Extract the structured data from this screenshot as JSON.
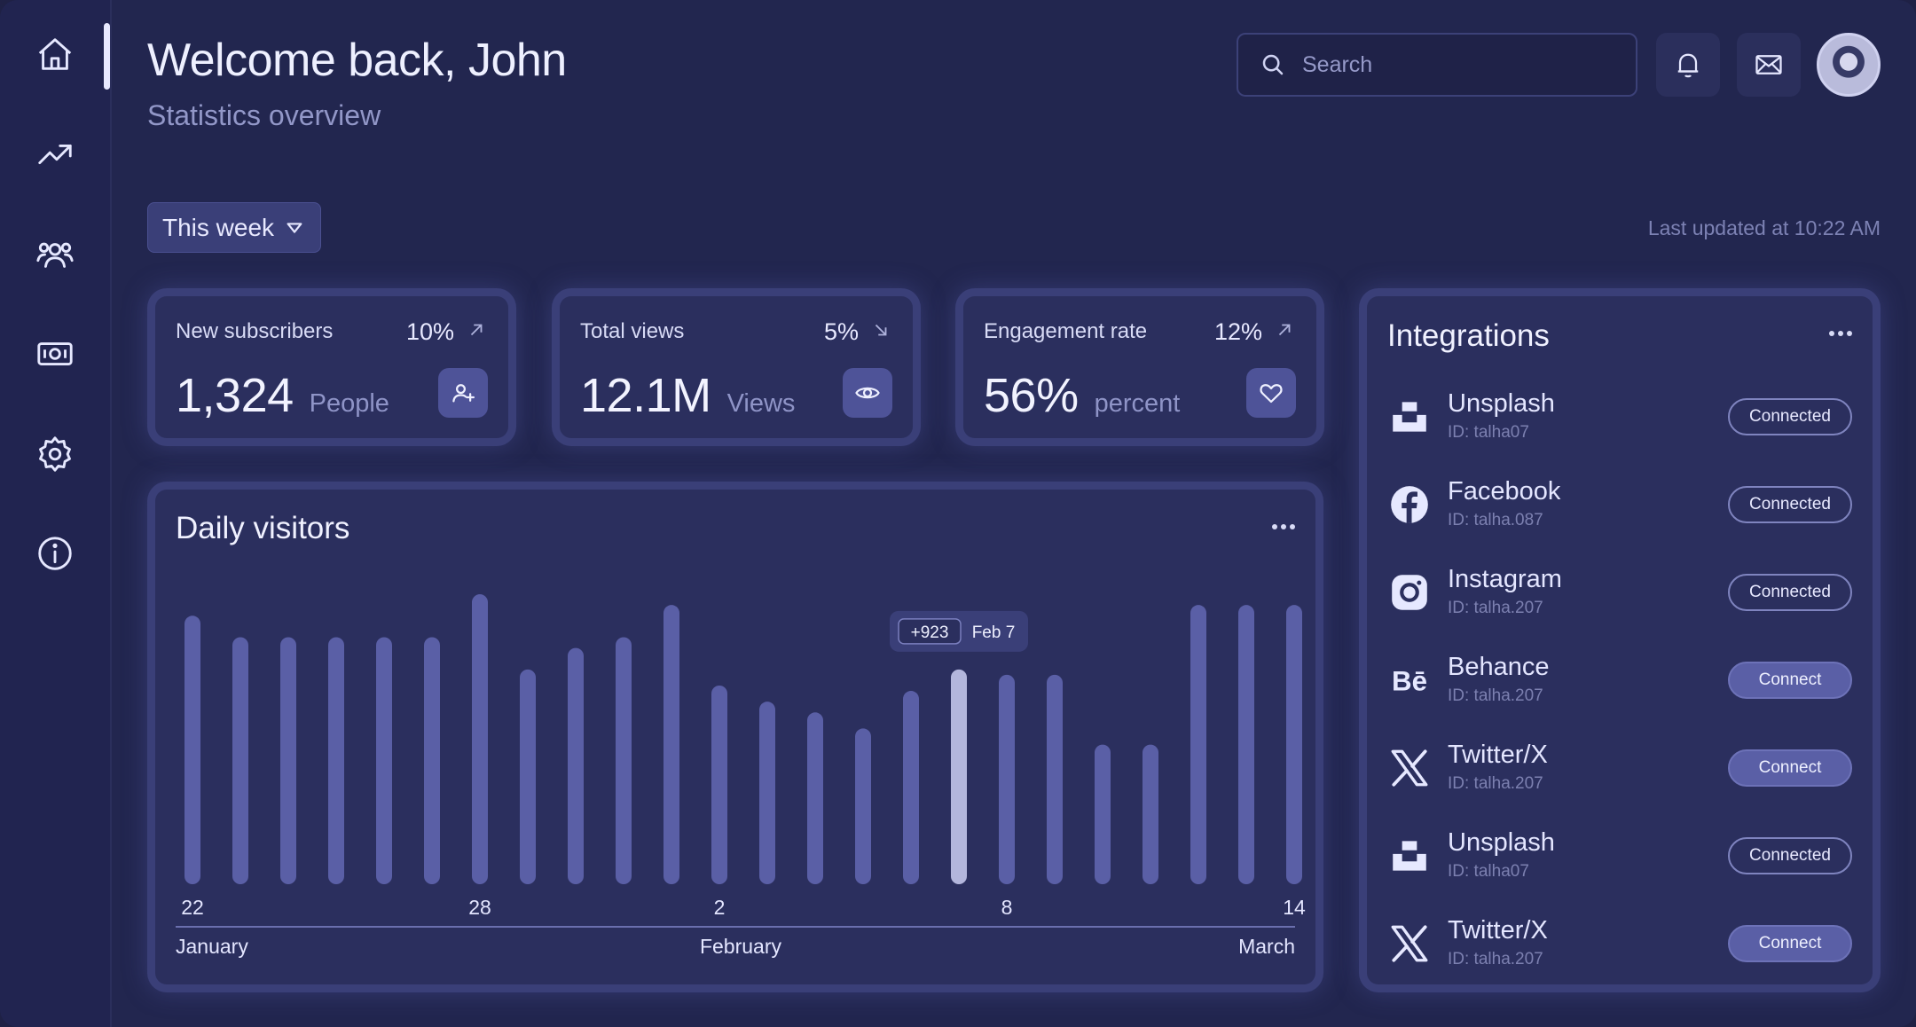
{
  "header": {
    "title": "Welcome back, John",
    "subtitle": "Statistics overview",
    "search_placeholder": "Search"
  },
  "filters": {
    "period_label": "This week",
    "last_updated": "Last updated at 10:22 AM"
  },
  "stats": [
    {
      "label": "New subscribers",
      "change": "10%",
      "direction": "up",
      "value": "1,324",
      "unit": "People",
      "icon": "add-user-icon"
    },
    {
      "label": "Total views",
      "change": "5%",
      "direction": "down",
      "value": "12.1M",
      "unit": "Views",
      "icon": "eye-icon"
    },
    {
      "label": "Engagement rate",
      "change": "12%",
      "direction": "up",
      "value": "56%",
      "unit": "percent",
      "icon": "heart-icon"
    }
  ],
  "chart_data": {
    "type": "bar",
    "title": "Daily visitors",
    "values": [
      100,
      92,
      92,
      92,
      92,
      92,
      108,
      80,
      88,
      92,
      104,
      74,
      68,
      64,
      58,
      72,
      80,
      78,
      78,
      52,
      52,
      104,
      104,
      104
    ],
    "highlight_index": 16,
    "tooltip": {
      "value": "+923",
      "date": "Feb 7"
    },
    "tick_labels": [
      "22",
      "28",
      "2",
      "8",
      "14"
    ],
    "month_labels": [
      "January",
      "February",
      "March"
    ],
    "ylim": [
      0,
      110
    ]
  },
  "integrations": {
    "title": "Integrations",
    "items": [
      {
        "name": "Unsplash",
        "uid": "ID: talha07",
        "status": "Connected",
        "icon": "unsplash-icon"
      },
      {
        "name": "Facebook",
        "uid": "ID: talha.087",
        "status": "Connected",
        "icon": "facebook-icon"
      },
      {
        "name": "Instagram",
        "uid": "ID: talha.207",
        "status": "Connected",
        "icon": "instagram-icon"
      },
      {
        "name": "Behance",
        "uid": "ID: talha.207",
        "status": "Connect",
        "icon": "behance-icon"
      },
      {
        "name": "Twitter/X",
        "uid": "ID: talha.207",
        "status": "Connect",
        "icon": "x-icon"
      },
      {
        "name": "Unsplash",
        "uid": "ID: talha07",
        "status": "Connected",
        "icon": "unsplash-icon"
      },
      {
        "name": "Twitter/X",
        "uid": "ID: talha.207",
        "status": "Connect",
        "icon": "x-icon"
      }
    ]
  },
  "colors": {
    "background": "#22264f",
    "bar": "#5a5fa6",
    "bar_highlight": "#b3b6dc",
    "accent": "#4e5398"
  }
}
